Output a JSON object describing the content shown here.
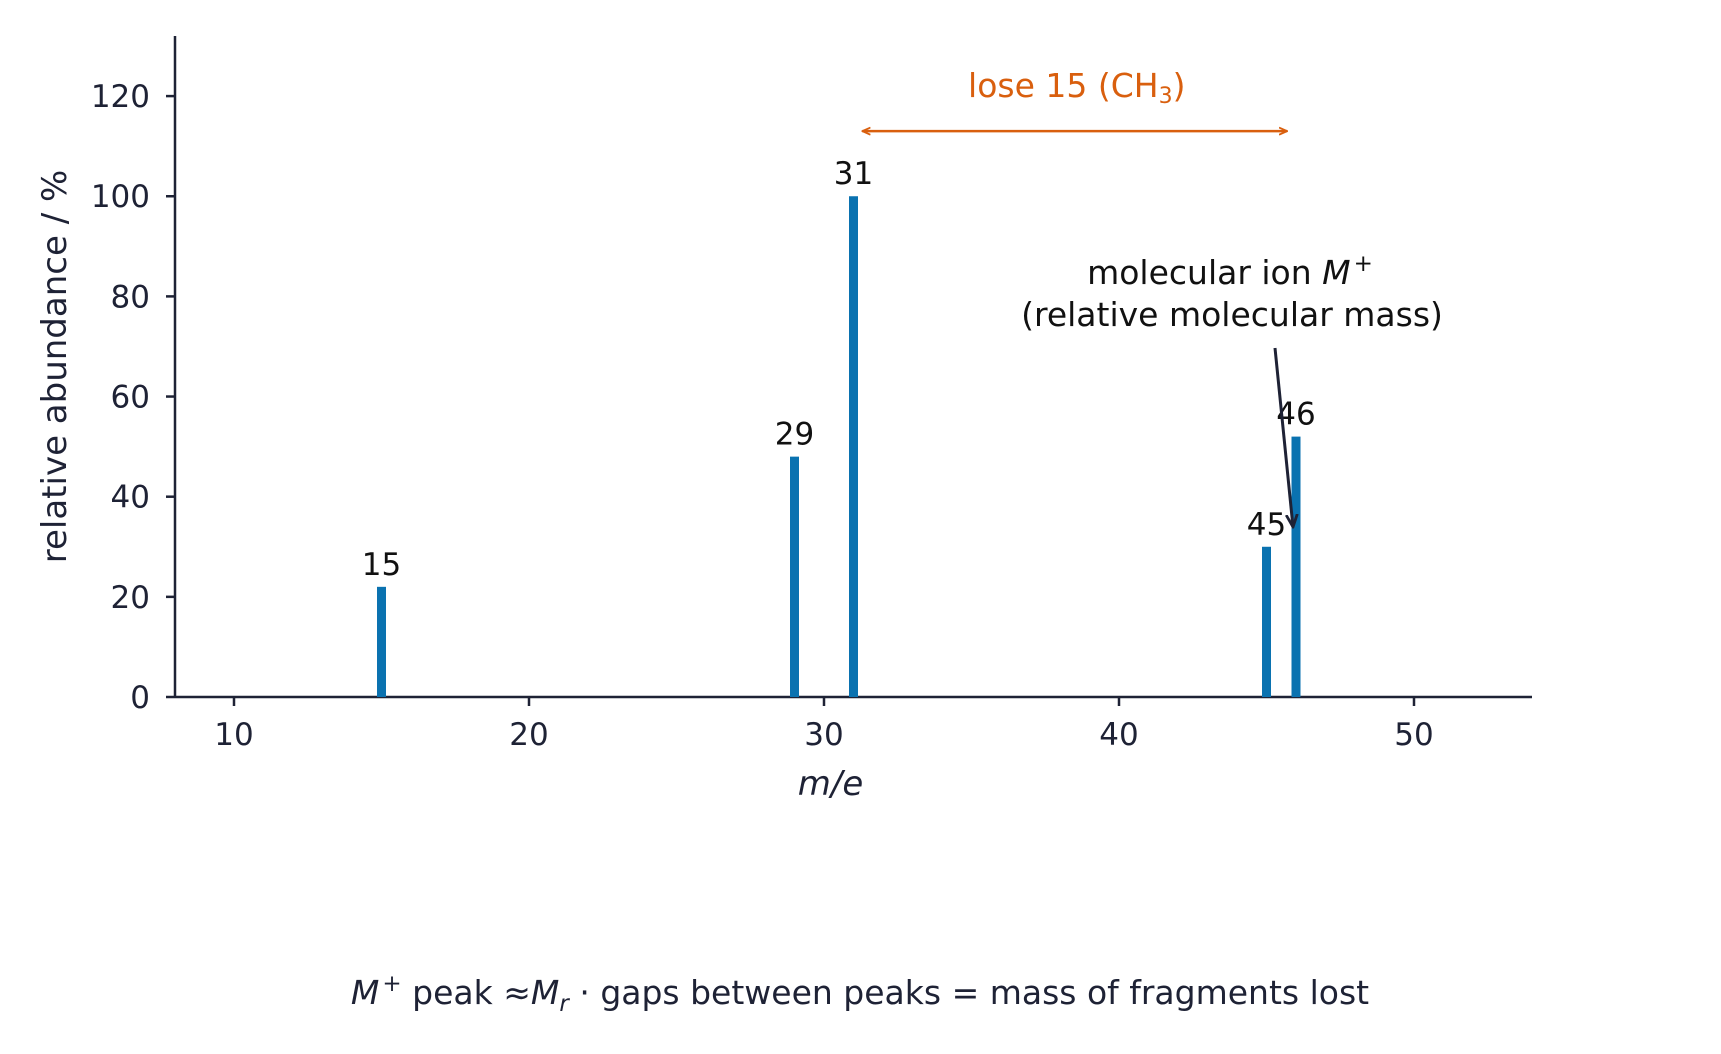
{
  "chart_data": {
    "type": "bar",
    "xlabel": "m/e",
    "ylabel": "relative abundance / %",
    "xlim": [
      8,
      54
    ],
    "ylim": [
      0,
      132
    ],
    "xticks": [
      10,
      20,
      30,
      40,
      50
    ],
    "yticks": [
      0,
      20,
      40,
      60,
      80,
      100,
      120
    ],
    "grid": false,
    "colors": {
      "bars": "#0a72b0",
      "axis": "#1e2235",
      "loss": "#d95f0e"
    },
    "peaks": [
      {
        "mz": 15,
        "abundance": 22,
        "label": "15"
      },
      {
        "mz": 29,
        "abundance": 48,
        "label": "29"
      },
      {
        "mz": 31,
        "abundance": 100,
        "label": "31"
      },
      {
        "mz": 45,
        "abundance": 30,
        "label": "45"
      },
      {
        "mz": 46,
        "abundance": 52,
        "label": "46"
      }
    ],
    "annotations": {
      "loss": {
        "text_main": "lose 15 (CH",
        "text_sub": "3",
        "text_end": ")",
        "from": 31.3,
        "to": 45.7,
        "y": 113
      },
      "molecular_ion": {
        "line1_text": "molecular ion ",
        "line1_symbol": "M",
        "line1_sup": "+",
        "line2": "(relative molecular mass)",
        "points_to": 46
      }
    },
    "footer": {
      "symbol": "M",
      "sup": "+",
      "text1": " peak ≈",
      "symbol2": "M",
      "sub2": "r",
      "text2": " · gaps between peaks = mass of fragments lost"
    }
  }
}
